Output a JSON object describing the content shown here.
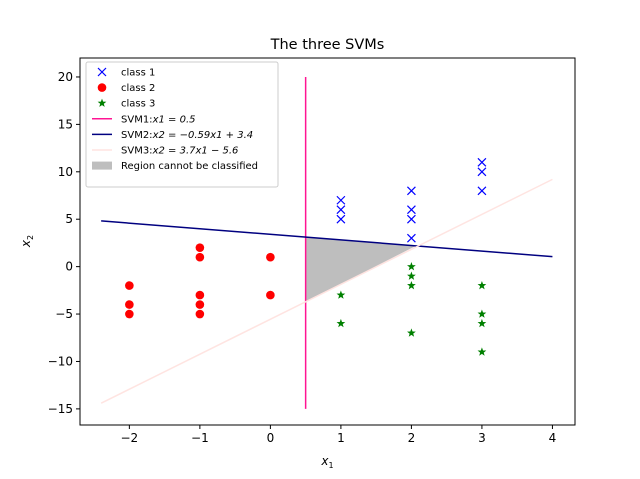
{
  "chart_data": {
    "type": "scatter",
    "title": "The three SVMs",
    "xlabel_main": "x",
    "xlabel_sub": "1",
    "ylabel_main": "x",
    "ylabel_sub": "2",
    "xlim": [
      -2.7,
      4.32
    ],
    "ylim": [
      -16.7,
      22.0
    ],
    "xticks": [
      -2,
      -1,
      0,
      1,
      2,
      3,
      4
    ],
    "yticks": [
      -15,
      -10,
      -5,
      0,
      5,
      10,
      15,
      20
    ],
    "scatter_series": [
      {
        "legend": "class 1",
        "marker": "x",
        "color": "#0000ff",
        "points": [
          [
            1,
            5
          ],
          [
            1,
            6
          ],
          [
            1,
            7
          ],
          [
            2,
            3
          ],
          [
            2,
            5
          ],
          [
            2,
            6
          ],
          [
            2,
            8
          ],
          [
            3,
            8
          ],
          [
            3,
            10
          ],
          [
            3,
            11
          ]
        ]
      },
      {
        "legend": "class 2",
        "marker": "o",
        "color": "#ff0000",
        "points": [
          [
            -2,
            -2
          ],
          [
            -2,
            -4
          ],
          [
            -2,
            -5
          ],
          [
            -1,
            2
          ],
          [
            -1,
            1
          ],
          [
            -1,
            -3
          ],
          [
            -1,
            -4
          ],
          [
            -1,
            -5
          ],
          [
            0,
            1
          ],
          [
            0,
            -3
          ]
        ]
      },
      {
        "legend": "class 3",
        "marker": "*",
        "color": "#008000",
        "points": [
          [
            1,
            -3
          ],
          [
            1,
            -6
          ],
          [
            2,
            0
          ],
          [
            2,
            -1
          ],
          [
            2,
            -2
          ],
          [
            2,
            -7
          ],
          [
            3,
            -2
          ],
          [
            3,
            -5
          ],
          [
            3,
            -6
          ],
          [
            3,
            -9
          ]
        ]
      }
    ],
    "lines": [
      {
        "legend_prefix": "SVM1:",
        "legend_eq": "x1 = 0.5",
        "color": "#ff1493",
        "x": [
          0.5,
          0.5
        ],
        "y": [
          -15,
          20
        ]
      },
      {
        "legend_prefix": "SVM2:",
        "legend_eq": "x2 = −0.59x1 + 3.4",
        "color": "#000080",
        "x": [
          -2.4,
          4.0
        ],
        "y": [
          4.82,
          1.05
        ]
      },
      {
        "legend_prefix": "SVM3:",
        "legend_eq": "x2 = 3.7x1 − 5.6",
        "color": "#ffe4e1",
        "x": [
          -2.4,
          4.0
        ],
        "y": [
          -14.4,
          9.2
        ]
      }
    ],
    "region": {
      "legend": "Region cannot be classified",
      "color": "#bebebe",
      "polygon": [
        [
          0.5,
          3.105
        ],
        [
          0.5,
          -3.75
        ],
        [
          2.06,
          2.18
        ]
      ]
    },
    "legend_position": "upper-left"
  }
}
